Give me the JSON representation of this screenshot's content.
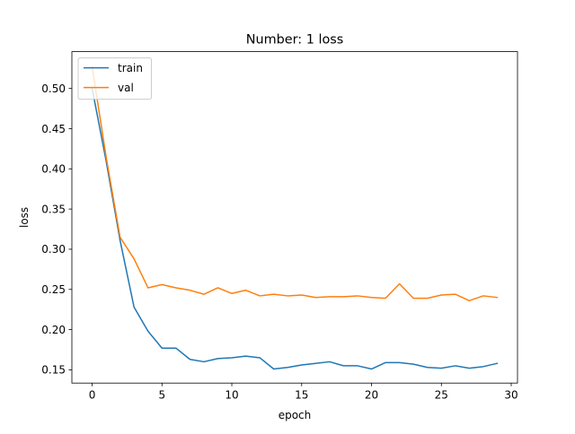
{
  "chart_data": {
    "type": "line",
    "title": "Number: 1 loss",
    "xlabel": "epoch",
    "ylabel": "loss",
    "xlim": [
      -1.45,
      30.45
    ],
    "ylim": [
      0.1335,
      0.5458
    ],
    "xticks": [
      0,
      5,
      10,
      15,
      20,
      25,
      30
    ],
    "xtick_labels": [
      "0",
      "5",
      "10",
      "15",
      "20",
      "25",
      "30"
    ],
    "yticks": [
      0.15,
      0.2,
      0.25,
      0.3,
      0.35,
      0.4,
      0.45,
      0.5
    ],
    "ytick_labels": [
      "0.15",
      "0.20",
      "0.25",
      "0.30",
      "0.35",
      "0.40",
      "0.45",
      "0.50"
    ],
    "grid": false,
    "legend_position": "upper left",
    "x": [
      0,
      1,
      2,
      3,
      4,
      5,
      6,
      7,
      8,
      9,
      10,
      11,
      12,
      13,
      14,
      15,
      16,
      17,
      18,
      19,
      20,
      21,
      22,
      23,
      24,
      25,
      26,
      27,
      28,
      29
    ],
    "series": [
      {
        "name": "train",
        "color": "#1f77b4",
        "values": [
          0.5,
          0.41,
          0.311,
          0.228,
          0.198,
          0.177,
          0.177,
          0.163,
          0.16,
          0.164,
          0.165,
          0.167,
          0.165,
          0.151,
          0.153,
          0.156,
          0.158,
          0.16,
          0.155,
          0.155,
          0.151,
          0.159,
          0.159,
          0.157,
          0.153,
          0.152,
          0.155,
          0.152,
          0.154,
          0.158
        ]
      },
      {
        "name": "val",
        "color": "#ff7f0e",
        "values": [
          0.527,
          0.415,
          0.315,
          0.288,
          0.252,
          0.256,
          0.252,
          0.249,
          0.244,
          0.252,
          0.245,
          0.249,
          0.242,
          0.244,
          0.242,
          0.243,
          0.24,
          0.241,
          0.241,
          0.242,
          0.24,
          0.239,
          0.257,
          0.239,
          0.239,
          0.243,
          0.244,
          0.236,
          0.242,
          0.24
        ]
      }
    ]
  }
}
